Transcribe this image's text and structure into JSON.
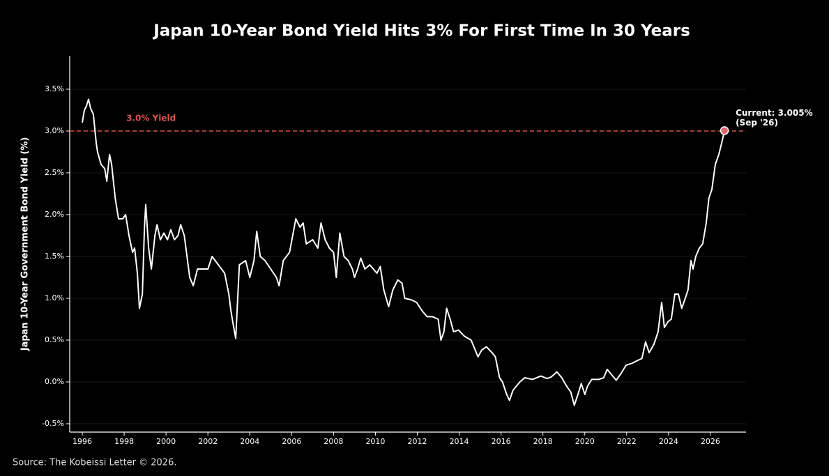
{
  "chart_data": {
    "type": "line",
    "title": "Japan 10-Year Bond Yield Hits 3% For First Time In 30 Years",
    "ylabel": "Japan 10-Year Government Bond Yield (%)",
    "source": "Source: The Kobeissi Letter © 2026.",
    "color": "#ffffff",
    "grid": true,
    "xlim": [
      1995.4,
      2027.7
    ],
    "ylim": [
      -0.6,
      3.9
    ],
    "xticks": [
      1996,
      1998,
      2000,
      2002,
      2004,
      2006,
      2008,
      2010,
      2012,
      2014,
      2016,
      2018,
      2020,
      2022,
      2024,
      2026
    ],
    "yticks": [
      {
        "value": -0.5,
        "label": "-0.5%"
      },
      {
        "value": 0,
        "label": "0.0%"
      },
      {
        "value": 0.5,
        "label": "0.5%"
      },
      {
        "value": 1,
        "label": "1.0%"
      },
      {
        "value": 1.5,
        "label": "1.5%"
      },
      {
        "value": 2,
        "label": "2.0%"
      },
      {
        "value": 2.5,
        "label": "2.5%"
      },
      {
        "value": 3,
        "label": "3.0%"
      },
      {
        "value": 3.5,
        "label": "3.5%"
      }
    ],
    "reference_line": {
      "value": 3.0,
      "label": "3.0% Yield",
      "color": "#d9534f"
    },
    "annotations": [
      "Current: 3.005%",
      "(Sep '26)"
    ],
    "marker_color": "#e06666",
    "x": [
      1996.0,
      1996.1,
      1996.2,
      1996.3,
      1996.4,
      1996.53,
      1996.67,
      1996.73,
      1996.9,
      1997.07,
      1997.17,
      1997.3,
      1997.4,
      1997.57,
      1997.73,
      1997.93,
      1998.07,
      1998.23,
      1998.4,
      1998.5,
      1998.63,
      1998.73,
      1998.87,
      1998.97,
      1999.03,
      1999.17,
      1999.3,
      1999.47,
      1999.57,
      1999.73,
      1999.9,
      2000.07,
      2000.23,
      2000.4,
      2000.57,
      2000.7,
      2000.87,
      2001.0,
      2001.13,
      2001.3,
      2001.5,
      2002.0,
      2002.2,
      2002.5,
      2002.8,
      2003.0,
      2003.1,
      2003.2,
      2003.33,
      2003.5,
      2003.8,
      2004.0,
      2004.2,
      2004.33,
      2004.5,
      2004.73,
      2005.0,
      2005.27,
      2005.4,
      2005.6,
      2005.9,
      2006.2,
      2006.4,
      2006.55,
      2006.7,
      2007.0,
      2007.25,
      2007.4,
      2007.6,
      2007.8,
      2008.0,
      2008.13,
      2008.3,
      2008.5,
      2008.7,
      2008.9,
      2009.0,
      2009.15,
      2009.3,
      2009.5,
      2009.73,
      2010.07,
      2010.23,
      2010.4,
      2010.63,
      2010.83,
      2011.07,
      2011.27,
      2011.4,
      2011.73,
      2011.97,
      2012.23,
      2012.47,
      2012.73,
      2013.0,
      2013.13,
      2013.27,
      2013.4,
      2013.57,
      2013.73,
      2013.97,
      2014.23,
      2014.57,
      2014.9,
      2015.07,
      2015.3,
      2015.57,
      2015.73,
      2015.93,
      2016.07,
      2016.27,
      2016.4,
      2016.57,
      2016.73,
      2016.9,
      2017.13,
      2017.5,
      2017.9,
      2018.2,
      2018.4,
      2018.67,
      2018.9,
      2019.13,
      2019.33,
      2019.5,
      2019.67,
      2019.83,
      2020.0,
      2020.13,
      2020.33,
      2020.67,
      2020.9,
      2021.07,
      2021.3,
      2021.5,
      2021.73,
      2021.97,
      2022.23,
      2022.47,
      2022.73,
      2022.9,
      2023.07,
      2023.3,
      2023.5,
      2023.67,
      2023.8,
      2023.97,
      2024.13,
      2024.3,
      2024.47,
      2024.63,
      2024.8,
      2024.93,
      2025.07,
      2025.17,
      2025.3,
      2025.47,
      2025.63,
      2025.8,
      2025.93,
      2026.07,
      2026.23,
      2026.4,
      2026.53,
      2026.67
    ],
    "values": [
      3.1,
      3.25,
      3.3,
      3.38,
      3.27,
      3.2,
      2.85,
      2.75,
      2.6,
      2.55,
      2.4,
      2.72,
      2.6,
      2.2,
      1.95,
      1.95,
      2.0,
      1.75,
      1.55,
      1.6,
      1.3,
      0.88,
      1.05,
      1.85,
      2.12,
      1.6,
      1.35,
      1.75,
      1.88,
      1.7,
      1.78,
      1.7,
      1.82,
      1.7,
      1.75,
      1.88,
      1.75,
      1.5,
      1.25,
      1.15,
      1.35,
      1.35,
      1.5,
      1.4,
      1.3,
      1.05,
      0.85,
      0.7,
      0.52,
      1.4,
      1.45,
      1.25,
      1.45,
      1.8,
      1.5,
      1.45,
      1.35,
      1.25,
      1.15,
      1.45,
      1.55,
      1.95,
      1.85,
      1.9,
      1.65,
      1.7,
      1.6,
      1.9,
      1.7,
      1.6,
      1.55,
      1.25,
      1.78,
      1.5,
      1.45,
      1.35,
      1.25,
      1.35,
      1.48,
      1.35,
      1.4,
      1.3,
      1.38,
      1.1,
      0.9,
      1.1,
      1.22,
      1.18,
      1.0,
      0.98,
      0.95,
      0.85,
      0.78,
      0.78,
      0.75,
      0.5,
      0.6,
      0.88,
      0.75,
      0.6,
      0.62,
      0.55,
      0.5,
      0.3,
      0.38,
      0.42,
      0.35,
      0.3,
      0.05,
      0.0,
      -0.15,
      -0.22,
      -0.1,
      -0.05,
      0.0,
      0.05,
      0.03,
      0.07,
      0.04,
      0.06,
      0.12,
      0.05,
      -0.05,
      -0.12,
      -0.28,
      -0.15,
      -0.02,
      -0.15,
      -0.05,
      0.03,
      0.03,
      0.05,
      0.15,
      0.08,
      0.02,
      0.1,
      0.2,
      0.22,
      0.25,
      0.28,
      0.48,
      0.35,
      0.45,
      0.6,
      0.95,
      0.65,
      0.72,
      0.75,
      1.05,
      1.05,
      0.88,
      1.0,
      1.1,
      1.45,
      1.35,
      1.5,
      1.6,
      1.65,
      1.9,
      2.2,
      2.3,
      2.6,
      2.72,
      2.85,
      3.005
    ]
  }
}
